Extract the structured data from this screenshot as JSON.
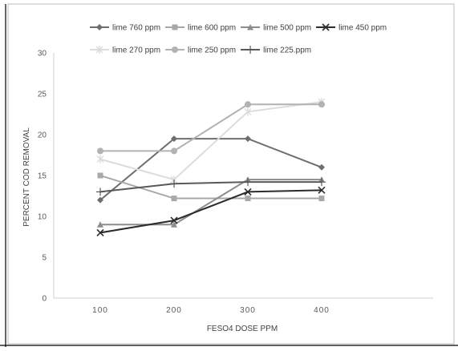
{
  "chart_data": {
    "type": "line",
    "title": "",
    "xlabel": "FESO4 DOSE PPM",
    "ylabel": "PERCENT COD REMOVAL",
    "x": [
      100,
      200,
      300,
      400
    ],
    "x_tick_labels": [
      "100",
      "200",
      "300",
      "400"
    ],
    "ylim": [
      0,
      30
    ],
    "y_ticks": [
      0,
      5,
      10,
      15,
      20,
      25,
      30
    ],
    "y_tick_labels": [
      "0",
      "5",
      "10",
      "15",
      "20",
      "25",
      "30"
    ],
    "grid": false,
    "legend_position": "top",
    "series": [
      {
        "name": "lime 760 ppm",
        "values": [
          12,
          19.5,
          19.5,
          16
        ],
        "color": "#6e6e6e",
        "marker": "diamond"
      },
      {
        "name": "lime 600 ppm",
        "values": [
          15,
          12.2,
          12.2,
          12.2
        ],
        "color": "#a8a8a8",
        "marker": "square"
      },
      {
        "name": "lime 500 ppm",
        "values": [
          9,
          9,
          14.5,
          14.5
        ],
        "color": "#8c8c8c",
        "marker": "triangle"
      },
      {
        "name": "lime 450 ppm",
        "values": [
          8,
          9.5,
          13,
          13.2
        ],
        "color": "#2b2b2b",
        "marker": "x"
      },
      {
        "name": "lime 270 ppm",
        "values": [
          17,
          14.5,
          22.8,
          24
        ],
        "color": "#dcdcdc",
        "marker": "star"
      },
      {
        "name": "lime 250 ppm",
        "values": [
          18,
          18,
          23.7,
          23.7
        ],
        "color": "#b2b2b2",
        "marker": "circle"
      },
      {
        "name": "lime 225.ppm",
        "values": [
          13,
          14,
          14.2,
          14.2
        ],
        "color": "#595959",
        "marker": "plus"
      }
    ]
  }
}
